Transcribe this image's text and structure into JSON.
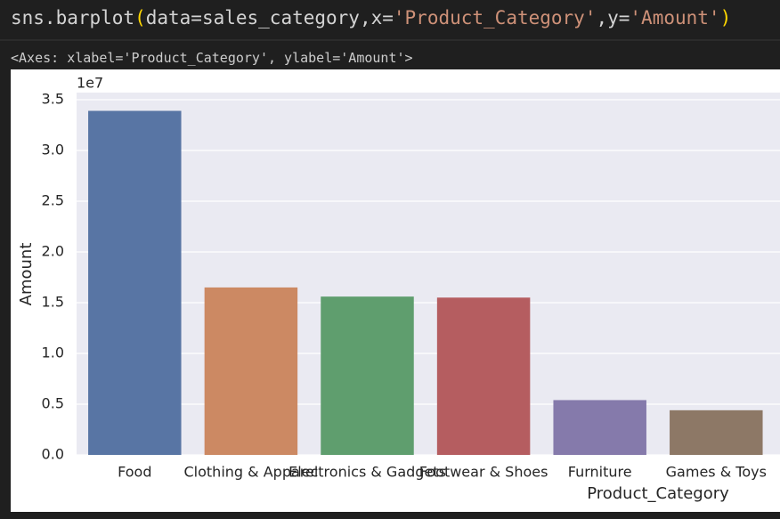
{
  "code_tokens": [
    {
      "text": "sns.barplot",
      "color": "#d4d4d4"
    },
    {
      "text": "(",
      "color": "#ffd700"
    },
    {
      "text": "data=sales_category,x=",
      "color": "#d4d4d4"
    },
    {
      "text": "'Product_Category'",
      "color": "#ce9178"
    },
    {
      "text": ",y=",
      "color": "#d4d4d4"
    },
    {
      "text": "'Amount'",
      "color": "#ce9178"
    },
    {
      "text": ")",
      "color": "#ffd700"
    }
  ],
  "output": "<Axes: xlabel='Product_Category', ylabel='Amount'>",
  "chart_data": {
    "type": "bar",
    "xlabel": "Product_Category",
    "ylabel": "Amount",
    "offset_text": "1e7",
    "categories": [
      "Food",
      "Clothing & Apparel",
      "Electronics & Gadgets",
      "Footwear & Shoes",
      "Furniture",
      "Games & Toys"
    ],
    "values": [
      3.39,
      1.65,
      1.56,
      1.55,
      0.54,
      0.44
    ],
    "colors": [
      "#5875a4",
      "#cc8963",
      "#5f9e6e",
      "#b55d60",
      "#857aab",
      "#8d7866"
    ],
    "ylim": [
      0,
      3.57
    ],
    "yticks": [
      {
        "value": 0,
        "label": "0.0"
      },
      0.5,
      {
        "value": 1,
        "label": "1.0"
      },
      1.5,
      {
        "value": 2,
        "label": "2.0"
      },
      2.5,
      {
        "value": 3,
        "label": "3.0"
      },
      3.5
    ],
    "grid": true,
    "background": "#eaeaf2"
  }
}
